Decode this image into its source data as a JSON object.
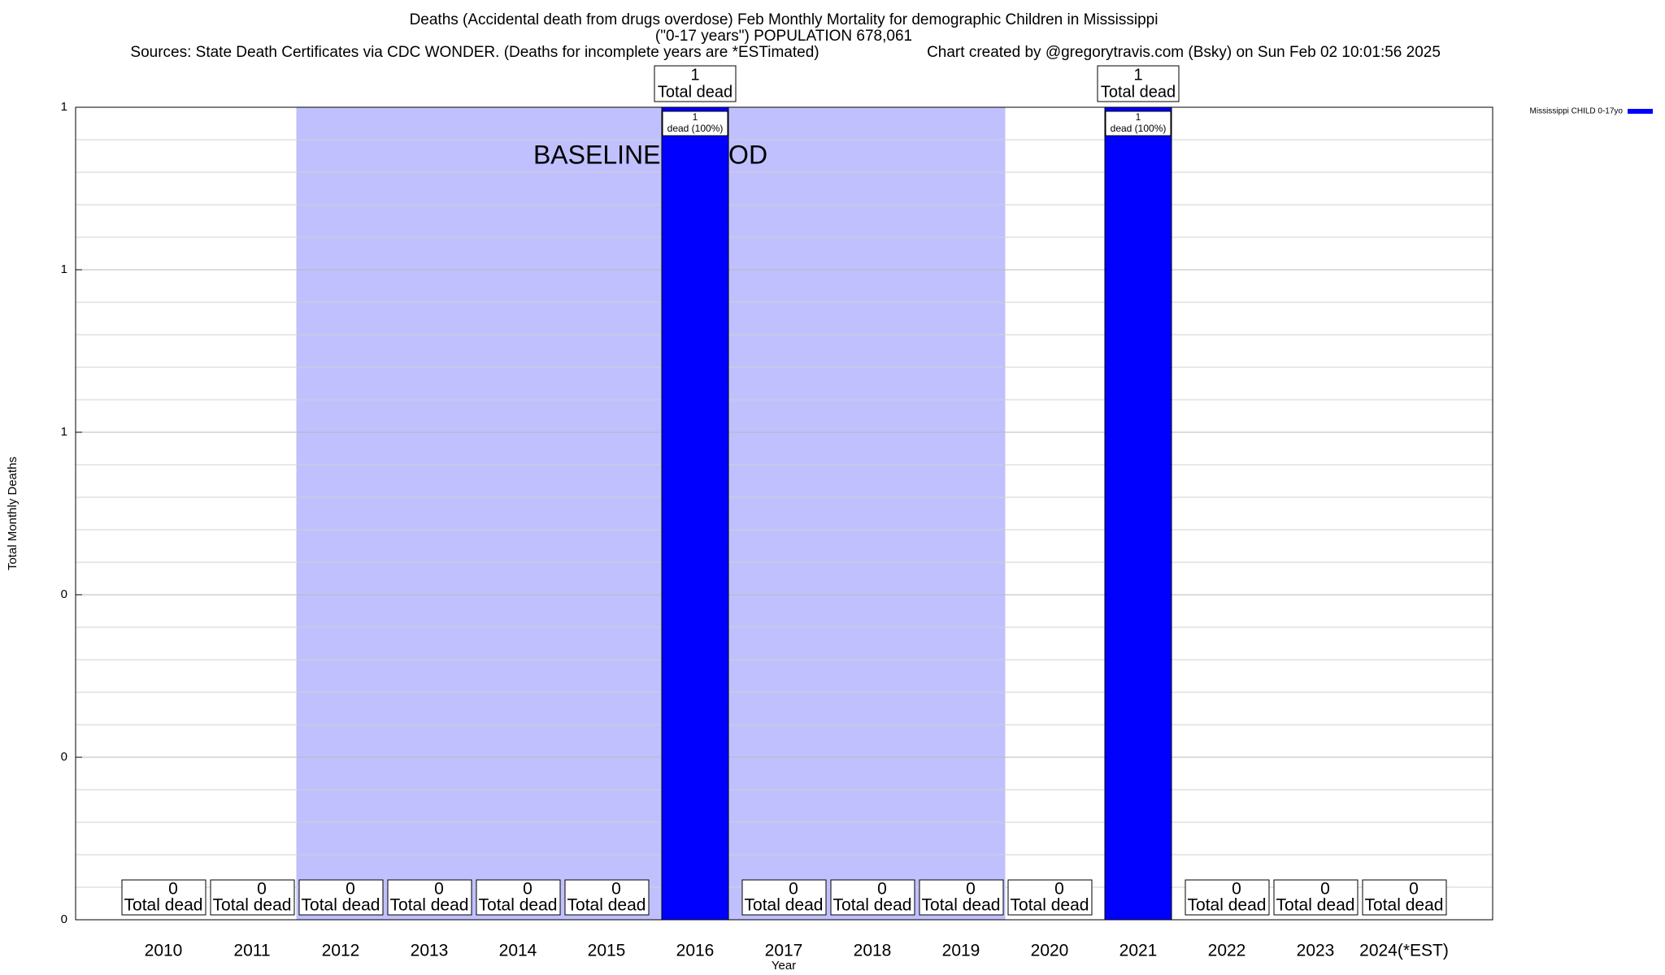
{
  "chart_data": {
    "type": "bar",
    "title": "Deaths (Accidental death from drugs overdose) Feb Monthly Mortality for demographic Children in Mississippi",
    "subtitle": "(\"0-17 years\") POPULATION 678,061",
    "source": "Sources: State Death Certificates via CDC WONDER. (Deaths for incomplete years are *ESTimated)",
    "credit": "Chart created by @gregorytravis.com (Bsky) on Sun Feb 02 10:01:56 2025",
    "x_label": "Year",
    "y_label": "Total Monthly Deaths",
    "categories": [
      "2010",
      "2011",
      "2012",
      "2013",
      "2014",
      "2015",
      "2016",
      "2017",
      "2018",
      "2019",
      "2020",
      "2021",
      "2022",
      "2023",
      "2024(*EST)"
    ],
    "series": [
      {
        "name": "Mississippi CHILD 0-17yo",
        "color": "#0000ff",
        "values": [
          0,
          0,
          0,
          0,
          0,
          0,
          1,
          0,
          0,
          0,
          0,
          1,
          0,
          0,
          0
        ]
      }
    ],
    "total_label": "Total dead",
    "bar_label": "dead (100%)",
    "baseline": {
      "label": "BASELINE PERIOD",
      "start": "2012",
      "end": "2019",
      "color": "#c0c0ff"
    },
    "ylim": [
      0,
      1
    ],
    "yticks": [
      0,
      {
        "value": 0.2,
        "label": "0"
      },
      {
        "value": 0.4,
        "label": "0"
      },
      {
        "value": 0.6,
        "label": "1"
      },
      {
        "value": 0.8,
        "label": "1"
      },
      1
    ],
    "yminorticks": [
      0.04,
      0.08,
      0.12,
      0.16,
      0.24,
      0.28,
      0.32,
      0.36,
      0.44,
      0.48,
      0.52,
      0.56,
      0.64,
      0.68,
      0.72,
      0.76,
      0.84,
      0.88,
      0.92,
      0.96
    ],
    "grid": true,
    "legend": "top-right"
  }
}
